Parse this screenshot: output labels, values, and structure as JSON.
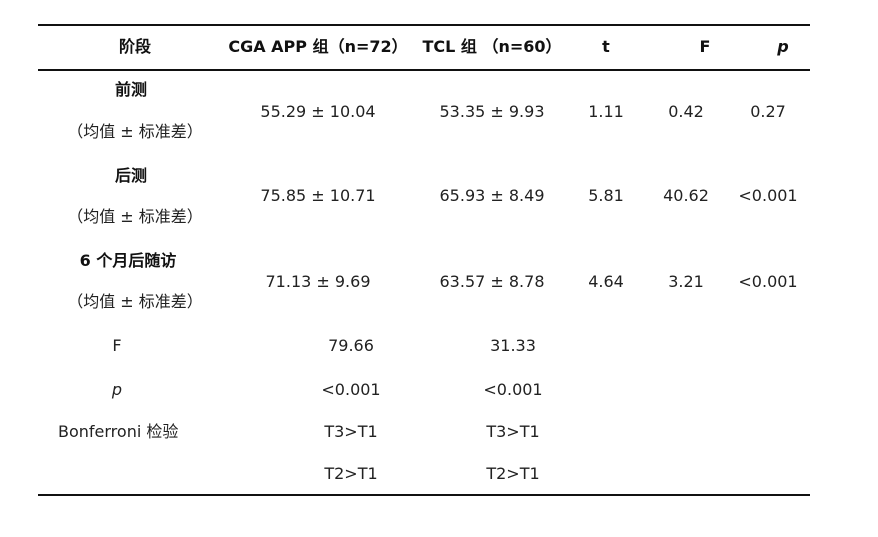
{
  "table": {
    "headers": [
      "阶段",
      "CGA APP 组（n=72）",
      "TCL 组 （n=60）",
      "t",
      "F",
      "p"
    ],
    "groups": [
      {
        "stage": "前测",
        "sub": "（均值 ± 标准差）",
        "cga": "55.29 ± 10.04",
        "tcl": "53.35 ± 9.93",
        "t": "1.11",
        "F": "0.42",
        "p": "0.27"
      },
      {
        "stage": "后测",
        "sub": "（均值 ± 标准差）",
        "cga": "75.85 ± 10.71",
        "tcl": "65.93 ± 8.49",
        "t": "5.81",
        "F": "40.62",
        "p": "<0.001"
      },
      {
        "stage": "6 个月后随访",
        "sub": "（均值 ± 标准差）",
        "cga": "71.13 ± 9.69",
        "tcl": "63.57 ± 8.78",
        "t": "4.64",
        "F": "3.21",
        "p": "<0.001"
      }
    ],
    "extra_rows": [
      {
        "label": "F",
        "cga": "79.66",
        "tcl": "31.33"
      },
      {
        "label": "p",
        "cga": "<0.001",
        "tcl": "<0.001"
      },
      {
        "label": "Bonferroni 检验",
        "cga": "T3>T1",
        "tcl": "T3>T1"
      },
      {
        "label": "",
        "cga": "T2>T1",
        "tcl": "T2>T1"
      }
    ]
  }
}
